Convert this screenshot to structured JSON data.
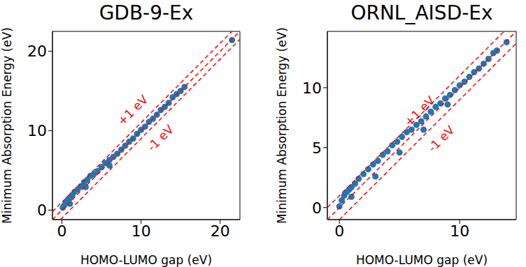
{
  "chart_data": [
    {
      "type": "scatter",
      "title": "GDB-9-Ex",
      "x_label": "HOMO-LUMO gap (eV)",
      "y_label": "Minimum Absorption Energy (eV)",
      "xlim": [
        -1.2,
        22.5
      ],
      "ylim": [
        -1.2,
        22.5
      ],
      "xticks": [
        0,
        10,
        20
      ],
      "yticks": [
        0,
        10,
        20
      ],
      "series": [
        {
          "type": "scatter",
          "color": "#1f77b4",
          "marker": "circle",
          "x": [
            0.1,
            0.3,
            0.5,
            0.8,
            1.0,
            1.3,
            1.6,
            2.0,
            2.4,
            2.8,
            3.2,
            3.6,
            4.0,
            4.5,
            5.0,
            5.5,
            6.0,
            6.5,
            7.0,
            7.5,
            8.0,
            8.5,
            9.0,
            9.5,
            10.0,
            10.5,
            11.0,
            11.5,
            12.0,
            12.5,
            13.0,
            13.5,
            14.0,
            14.5,
            15.0,
            15.5,
            1.0,
            3.0,
            6.0,
            21.5
          ],
          "values": [
            0.3,
            0.6,
            1.0,
            1.4,
            1.5,
            1.9,
            2.3,
            2.6,
            3.0,
            3.5,
            3.8,
            4.3,
            4.5,
            4.9,
            5.4,
            5.9,
            6.3,
            6.7,
            7.1,
            7.6,
            8.1,
            8.6,
            9.0,
            9.6,
            10.1,
            10.5,
            11.1,
            11.5,
            12.0,
            12.6,
            13.0,
            13.5,
            14.2,
            14.6,
            15.0,
            15.5,
            0.8,
            2.9,
            5.6,
            21.4
          ]
        },
        {
          "type": "line",
          "color": "#ff0000",
          "line_style": "dashed",
          "x": [
            -1.2,
            21.5
          ],
          "values": [
            -0.2,
            22.5
          ]
        },
        {
          "type": "line",
          "color": "#ff0000",
          "line_style": "dashed",
          "x": [
            -1.2,
            22.5
          ],
          "values": [
            -1.2,
            22.5
          ]
        },
        {
          "type": "line",
          "color": "#ff0000",
          "line_style": "dashed",
          "x": [
            -0.2,
            22.5
          ],
          "values": [
            -1.2,
            21.5
          ]
        }
      ],
      "annotations": [
        {
          "text": "+1 eV",
          "x": 9.0,
          "y": 12.5,
          "color": "#ff0000"
        },
        {
          "text": "-1 eV",
          "x": 12.5,
          "y": 9.0,
          "color": "#ff0000"
        }
      ]
    },
    {
      "type": "scatter",
      "title": "ORNL_AISD-Ex",
      "x_label": "HOMO-LUMO gap (eV)",
      "y_label": "Minimum Absorption Energy (eV)",
      "xlim": [
        -1,
        14.7
      ],
      "ylim": [
        -1,
        14.7
      ],
      "xticks": [
        0,
        10
      ],
      "yticks": [
        0,
        5,
        10
      ],
      "series": [
        {
          "type": "scatter",
          "color": "#1f77b4",
          "marker": "circle",
          "x": [
            0.0,
            0.2,
            0.4,
            0.6,
            0.8,
            1.0,
            1.3,
            1.6,
            2.0,
            2.4,
            2.8,
            3.2,
            3.6,
            4.0,
            4.4,
            4.8,
            5.2,
            5.6,
            6.0,
            6.4,
            6.8,
            7.2,
            7.6,
            8.0,
            8.4,
            8.8,
            9.2,
            9.6,
            10.0,
            10.4,
            10.8,
            11.2,
            11.6,
            12.0,
            12.4,
            12.8,
            13.1,
            1.0,
            3.0,
            5.0,
            7.0,
            9.0,
            13.9
          ],
          "values": [
            0.1,
            0.6,
            1.0,
            1.3,
            1.5,
            1.7,
            2.0,
            2.4,
            2.8,
            3.2,
            3.6,
            3.9,
            4.4,
            4.7,
            5.2,
            5.5,
            5.9,
            6.3,
            6.5,
            6.9,
            7.2,
            7.6,
            8.0,
            8.4,
            8.7,
            9.1,
            9.4,
            9.8,
            10.2,
            10.5,
            10.9,
            11.3,
            11.6,
            12.0,
            12.4,
            12.9,
            13.1,
            0.9,
            2.6,
            4.6,
            6.5,
            8.6,
            13.8
          ]
        },
        {
          "type": "line",
          "color": "#ff0000",
          "line_style": "dashed",
          "x": [
            -1,
            13.7
          ],
          "values": [
            0,
            14.7
          ]
        },
        {
          "type": "line",
          "color": "#ff0000",
          "line_style": "dashed",
          "x": [
            -1,
            14.7
          ],
          "values": [
            -1,
            14.7
          ]
        },
        {
          "type": "line",
          "color": "#ff0000",
          "line_style": "dashed",
          "x": [
            0,
            14.7
          ],
          "values": [
            -1,
            13.7
          ]
        }
      ],
      "annotations": [
        {
          "text": "+1 eV",
          "x": 6.7,
          "y": 8.0,
          "color": "#ff0000"
        },
        {
          "text": "-1 eV",
          "x": 8.5,
          "y": 5.7,
          "color": "#ff0000"
        }
      ]
    }
  ]
}
